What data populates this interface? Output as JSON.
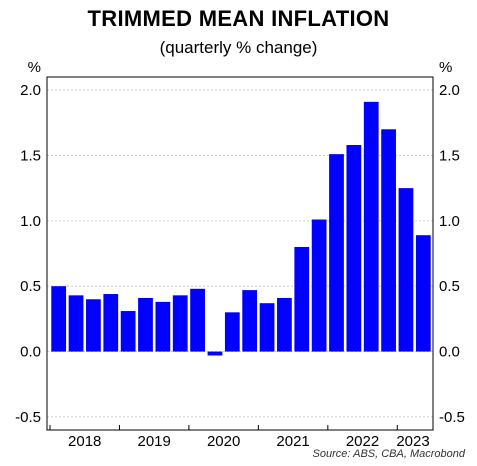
{
  "chart_data": {
    "type": "bar",
    "title": "TRIMMED MEAN INFLATION",
    "subtitle": "(quarterly % change)",
    "left_unit": "%",
    "right_unit": "%",
    "source": "Source: ABS, CBA, Macrobond",
    "ylim": [
      -0.6,
      2.1
    ],
    "yticks": [
      -0.5,
      0.0,
      0.5,
      1.0,
      1.5,
      2.0
    ],
    "ytick_labels": [
      "-0.5",
      "0.0",
      "0.5",
      "1.0",
      "1.5",
      "2.0"
    ],
    "grid": true,
    "year_labels": [
      "2018",
      "2019",
      "2020",
      "2021",
      "2022",
      "2023"
    ],
    "bar_color": "#0000ff",
    "categories": [
      "Q1 2018",
      "Q2 2018",
      "Q3 2018",
      "Q4 2018",
      "Q1 2019",
      "Q2 2019",
      "Q3 2019",
      "Q4 2019",
      "Q1 2020",
      "Q2 2020",
      "Q3 2020",
      "Q4 2020",
      "Q1 2021",
      "Q2 2021",
      "Q3 2021",
      "Q4 2021",
      "Q1 2022",
      "Q2 2022",
      "Q3 2022",
      "Q4 2022",
      "Q1 2023",
      "Q2 2023"
    ],
    "values": [
      0.5,
      0.43,
      0.4,
      0.44,
      0.31,
      0.41,
      0.38,
      0.43,
      0.48,
      -0.03,
      0.3,
      0.47,
      0.37,
      0.41,
      0.8,
      1.01,
      1.51,
      1.58,
      1.91,
      1.7,
      1.25,
      0.89
    ]
  }
}
